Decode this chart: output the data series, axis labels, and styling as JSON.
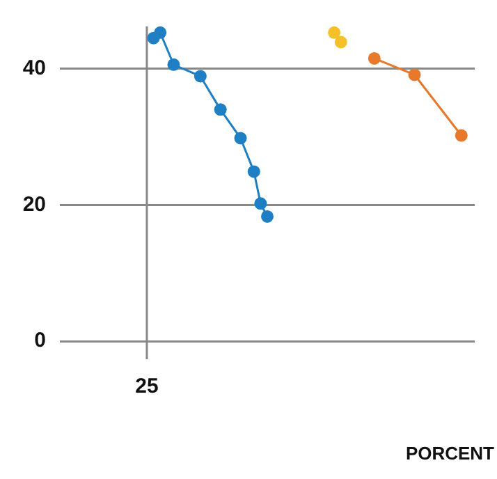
{
  "chart_data": {
    "type": "line",
    "xlabel": "PORCENT",
    "ylim": [
      0,
      46.2
    ],
    "yticks": [
      0,
      20,
      40
    ],
    "grid": true,
    "legend": false,
    "marker": "circle",
    "categories": [
      null,
      null,
      null,
      null,
      null,
      null,
      null,
      null,
      null,
      null,
      null,
      null,
      null,
      "25",
      null,
      null,
      null,
      null,
      null,
      null,
      null,
      null,
      null,
      null,
      null,
      null,
      null,
      null,
      null,
      null,
      null,
      null,
      null,
      null,
      null,
      null,
      null,
      null,
      null,
      null,
      null,
      null,
      null,
      null,
      null,
      null,
      null,
      null,
      null,
      null,
      null,
      null,
      null,
      null,
      null,
      null,
      null,
      null,
      null,
      null,
      null,
      null,
      null
    ],
    "series": [
      {
        "color": "#1f7fc4",
        "values": [
          null,
          null,
          null,
          null,
          null,
          null,
          null,
          null,
          null,
          null,
          null,
          null,
          null,
          null,
          44.5,
          45.3,
          null,
          40.6,
          null,
          null,
          null,
          38.9,
          null,
          null,
          34.0,
          null,
          null,
          29.8,
          null,
          24.9,
          20.2,
          18.3,
          null,
          null,
          null,
          null,
          null,
          null,
          null,
          null,
          null,
          null,
          null,
          null,
          null,
          null,
          null,
          null,
          null,
          null,
          null,
          null,
          null,
          null,
          null,
          null,
          null,
          null,
          null,
          null,
          null,
          null,
          null
        ]
      },
      {
        "type": "scatter",
        "color": "#f5c02a",
        "values": [
          null,
          null,
          null,
          null,
          null,
          null,
          null,
          null,
          null,
          null,
          null,
          null,
          null,
          null,
          null,
          null,
          null,
          null,
          null,
          null,
          null,
          null,
          null,
          null,
          null,
          null,
          null,
          null,
          null,
          null,
          null,
          null,
          null,
          null,
          null,
          null,
          null,
          null,
          null,
          null,
          null,
          45.3,
          43.9,
          null,
          null,
          null,
          null,
          null,
          null,
          null,
          null,
          null,
          null,
          null,
          null,
          null,
          null,
          null,
          null,
          null,
          null,
          null,
          null
        ]
      },
      {
        "color": "#e8782a",
        "values": [
          null,
          null,
          null,
          null,
          null,
          null,
          null,
          null,
          null,
          null,
          null,
          null,
          null,
          null,
          null,
          null,
          null,
          null,
          null,
          null,
          null,
          null,
          null,
          null,
          null,
          null,
          null,
          null,
          null,
          null,
          null,
          null,
          null,
          null,
          null,
          null,
          null,
          null,
          null,
          null,
          null,
          null,
          null,
          null,
          null,
          null,
          null,
          41.5,
          null,
          null,
          null,
          null,
          null,
          39.1,
          null,
          null,
          null,
          null,
          null,
          null,
          30.2,
          null,
          null
        ]
      }
    ]
  }
}
